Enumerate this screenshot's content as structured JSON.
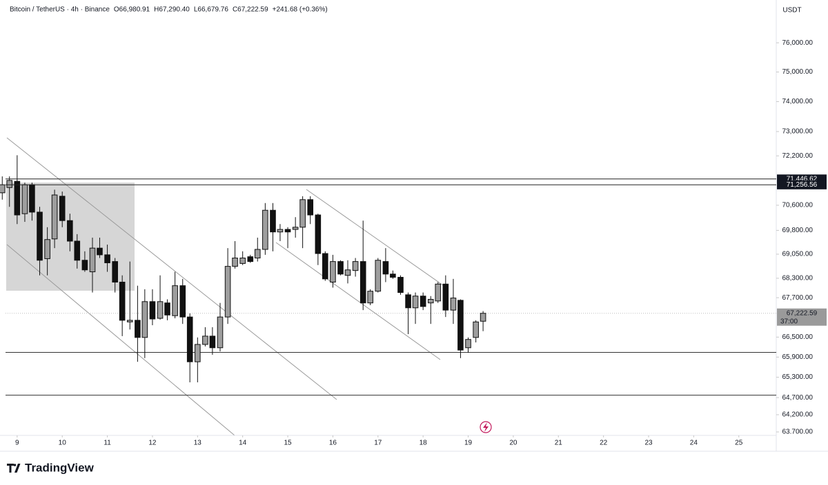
{
  "chart_data": {
    "type": "candlestick",
    "symbol": "Bitcoin / TetherUS · 4h · Binance",
    "legend_values": [
      "O66,980.91",
      "H67,290.40",
      "L66,679.76",
      "C67,222.59"
    ],
    "change": "+241.68 (+0.36%)",
    "currency": "USDT",
    "brand": "TradingView",
    "log_scale": true,
    "up_color": "#9e9e9e",
    "down_color": "#111111",
    "x": [
      8.67,
      8.83,
      9,
      9.17,
      9.33,
      9.5,
      9.67,
      9.83,
      10,
      10.17,
      10.33,
      10.5,
      10.67,
      10.83,
      11,
      11.17,
      11.33,
      11.5,
      11.67,
      11.83,
      12,
      12.17,
      12.33,
      12.5,
      12.67,
      12.83,
      13,
      13.17,
      13.33,
      13.5,
      13.67,
      13.83,
      14,
      14.17,
      14.33,
      14.5,
      14.67,
      14.83,
      15,
      15.17,
      15.33,
      15.5,
      15.67,
      15.83,
      16,
      16.17,
      16.33,
      16.5,
      16.67,
      16.83,
      17,
      17.17,
      17.33,
      17.5,
      17.67,
      17.83,
      18,
      18.17,
      18.33,
      18.5,
      18.67,
      18.83,
      19,
      19.17,
      19.33
    ],
    "open": [
      71000,
      71170,
      71370,
      70330,
      71260,
      70380,
      68910,
      69530,
      70890,
      70110,
      69460,
      68860,
      68500,
      69240,
      69030,
      68820,
      68180,
      66960,
      67010,
      66490,
      67580,
      67070,
      67540,
      67150,
      68070,
      67110,
      65760,
      66280,
      66530,
      66180,
      67110,
      68670,
      68760,
      68970,
      68930,
      69200,
      70440,
      69750,
      69830,
      69830,
      69900,
      70780,
      70290,
      69070,
      68180,
      68820,
      68390,
      68540,
      68820,
      67540,
      67900,
      68820,
      68430,
      68330,
      67790,
      67390,
      67750,
      67540,
      67600,
      68120,
      67320,
      67620,
      66180,
      66490,
      66980.91
    ],
    "high": [
      71530,
      71530,
      72220,
      71330,
      71330,
      70550,
      69900,
      71100,
      71040,
      70330,
      69680,
      69140,
      69570,
      69570,
      69350,
      68930,
      68390,
      68820,
      68070,
      67960,
      67960,
      68390,
      67650,
      68500,
      68280,
      67220,
      66490,
      66800,
      66800,
      67540,
      69240,
      69460,
      69140,
      69030,
      69570,
      70670,
      70670,
      70000,
      69900,
      70220,
      70890,
      70890,
      70330,
      69140,
      69030,
      68860,
      68860,
      68930,
      70110,
      67960,
      68930,
      69240,
      68540,
      68390,
      67860,
      67860,
      67860,
      67750,
      68180,
      68390,
      68280,
      67650,
      66490,
      67010,
      67290.4
    ],
    "low": [
      70780,
      70550,
      70000,
      70070,
      70110,
      68390,
      68390,
      69240,
      69900,
      69140,
      68600,
      68500,
      67860,
      68930,
      68500,
      67860,
      66530,
      66730,
      65760,
      65870,
      66860,
      67030,
      67010,
      67070,
      66900,
      65150,
      65150,
      66220,
      65970,
      66070,
      66900,
      68600,
      68710,
      68780,
      68820,
      69030,
      69140,
      69460,
      69240,
      69570,
      69240,
      70000,
      68710,
      68220,
      68010,
      68390,
      68140,
      68350,
      67320,
      67470,
      67860,
      68180,
      68280,
      67790,
      66590,
      66900,
      67320,
      66900,
      67540,
      67110,
      66900,
      65870,
      66030,
      66340,
      66679.76
    ],
    "close": [
      71260,
      71400,
      70290,
      71260,
      70380,
      68860,
      69510,
      70930,
      70110,
      69460,
      68860,
      68560,
      69240,
      69030,
      68780,
      68180,
      67010,
      67010,
      66490,
      67580,
      67050,
      67580,
      67170,
      68070,
      67110,
      65760,
      66280,
      66530,
      66180,
      67110,
      68670,
      68930,
      68930,
      68820,
      69200,
      70440,
      69750,
      69830,
      69750,
      69900,
      70780,
      70290,
      69070,
      68280,
      68820,
      68430,
      68560,
      68820,
      67540,
      67900,
      68860,
      68430,
      68330,
      67860,
      67390,
      67750,
      67430,
      67650,
      68120,
      67320,
      67690,
      66110,
      66430,
      66960,
      67222.59
    ],
    "xlim": [
      8.62,
      25.83
    ],
    "xticks": [
      9,
      10,
      11,
      12,
      13,
      14,
      15,
      16,
      17,
      18,
      19,
      20,
      21,
      22,
      23,
      24,
      25
    ],
    "ylim": [
      63600,
      77490
    ],
    "yticks": [
      {
        "value": 76000,
        "label": "76,000.00"
      },
      {
        "value": 75000,
        "label": "75,000.00"
      },
      {
        "value": 74000,
        "label": "74,000.00"
      },
      {
        "value": 73000,
        "label": "73,000.00"
      },
      {
        "value": 72200,
        "label": "72,200.00"
      },
      {
        "value": 70600,
        "label": "70,600.00"
      },
      {
        "value": 69800,
        "label": "69,800.00"
      },
      {
        "value": 69050,
        "label": "69,050.00"
      },
      {
        "value": 68300,
        "label": "68,300.00"
      },
      {
        "value": 67700,
        "label": "67,700.00"
      },
      {
        "value": 66500,
        "label": "66,500.00"
      },
      {
        "value": 65900,
        "label": "65,900.00"
      },
      {
        "value": 65300,
        "label": "65,300.00"
      },
      {
        "value": 64700,
        "label": "64,700.00"
      },
      {
        "value": 64200,
        "label": "64,200.00"
      },
      {
        "value": 63700,
        "label": "63.700.00"
      }
    ],
    "price_levels": [
      {
        "value": 71446.62,
        "label": "71,446.62"
      },
      {
        "value": 71256.56,
        "label": "71,256.56"
      }
    ],
    "horizontal_lines": [
      66040,
      64770
    ],
    "last_price": {
      "value": 67222.59,
      "label": "67,222.59",
      "countdown": "37:00"
    }
  }
}
